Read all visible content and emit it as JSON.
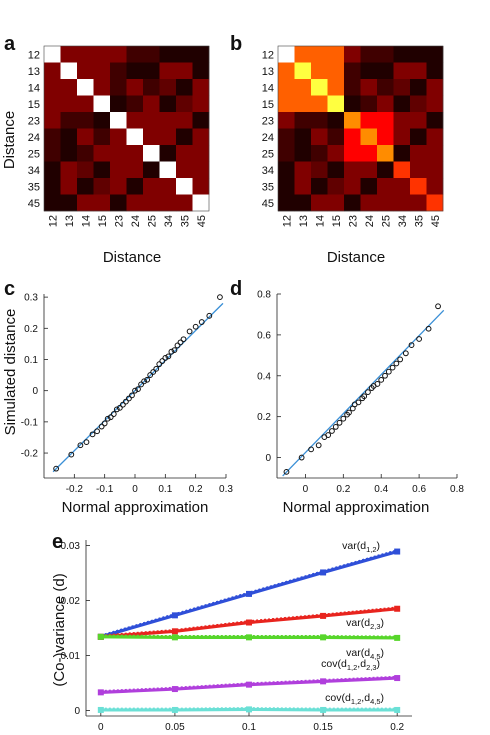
{
  "chart_data": [
    {
      "id": "a",
      "type": "heatmap",
      "panel_label": "a",
      "ylabel": "Distance",
      "xlabel": "Distance",
      "row_labels": [
        "12",
        "13",
        "14",
        "15",
        "23",
        "24",
        "25",
        "34",
        "35",
        "45"
      ],
      "col_labels": [
        "12",
        "13",
        "14",
        "15",
        "23",
        "24",
        "25",
        "34",
        "35",
        "45"
      ],
      "values": [
        [
          1.0,
          0.2,
          0.2,
          0.2,
          0.2,
          0.1,
          0.1,
          0.05,
          0.05,
          0.05
        ],
        [
          0.2,
          1.0,
          0.2,
          0.2,
          0.1,
          0.05,
          0.05,
          0.2,
          0.2,
          0.05
        ],
        [
          0.2,
          0.2,
          1.0,
          0.2,
          0.1,
          0.2,
          0.1,
          0.15,
          0.05,
          0.2
        ],
        [
          0.2,
          0.2,
          0.2,
          1.0,
          0.05,
          0.1,
          0.2,
          0.05,
          0.15,
          0.2
        ],
        [
          0.2,
          0.1,
          0.1,
          0.05,
          1.0,
          0.2,
          0.2,
          0.2,
          0.2,
          0.05
        ],
        [
          0.1,
          0.05,
          0.2,
          0.1,
          0.2,
          1.0,
          0.2,
          0.2,
          0.05,
          0.2
        ],
        [
          0.1,
          0.05,
          0.1,
          0.2,
          0.2,
          0.2,
          1.0,
          0.05,
          0.2,
          0.2
        ],
        [
          0.05,
          0.2,
          0.15,
          0.05,
          0.2,
          0.2,
          0.05,
          1.0,
          0.2,
          0.2
        ],
        [
          0.05,
          0.2,
          0.05,
          0.15,
          0.2,
          0.05,
          0.2,
          0.2,
          1.0,
          0.2
        ],
        [
          0.05,
          0.05,
          0.2,
          0.2,
          0.05,
          0.2,
          0.2,
          0.2,
          0.2,
          1.0
        ]
      ]
    },
    {
      "id": "b",
      "type": "heatmap",
      "panel_label": "b",
      "xlabel": "Distance",
      "row_labels": [
        "12",
        "13",
        "14",
        "15",
        "23",
        "24",
        "25",
        "34",
        "35",
        "45"
      ],
      "col_labels": [
        "12",
        "13",
        "14",
        "15",
        "23",
        "24",
        "25",
        "34",
        "35",
        "45"
      ],
      "values": [
        [
          1.0,
          0.55,
          0.55,
          0.55,
          0.2,
          0.1,
          0.1,
          0.05,
          0.05,
          0.05
        ],
        [
          0.55,
          0.85,
          0.55,
          0.55,
          0.1,
          0.05,
          0.05,
          0.2,
          0.2,
          0.05
        ],
        [
          0.55,
          0.55,
          0.85,
          0.55,
          0.1,
          0.2,
          0.1,
          0.15,
          0.05,
          0.2
        ],
        [
          0.55,
          0.55,
          0.55,
          0.85,
          0.05,
          0.1,
          0.2,
          0.05,
          0.15,
          0.2
        ],
        [
          0.2,
          0.1,
          0.1,
          0.05,
          0.62,
          0.4,
          0.4,
          0.2,
          0.2,
          0.05
        ],
        [
          0.1,
          0.05,
          0.2,
          0.1,
          0.4,
          0.62,
          0.4,
          0.2,
          0.05,
          0.2
        ],
        [
          0.1,
          0.05,
          0.1,
          0.2,
          0.4,
          0.4,
          0.62,
          0.05,
          0.2,
          0.2
        ],
        [
          0.05,
          0.2,
          0.15,
          0.05,
          0.2,
          0.2,
          0.05,
          0.48,
          0.2,
          0.2
        ],
        [
          0.05,
          0.2,
          0.05,
          0.15,
          0.2,
          0.05,
          0.2,
          0.2,
          0.48,
          0.2
        ],
        [
          0.05,
          0.05,
          0.2,
          0.2,
          0.05,
          0.2,
          0.2,
          0.2,
          0.2,
          0.48
        ]
      ]
    },
    {
      "id": "c",
      "type": "scatter",
      "panel_label": "c",
      "xlabel": "Normal approximation",
      "ylabel": "Simulated distance",
      "xlim": [
        -0.3,
        0.3
      ],
      "ylim": [
        -0.28,
        0.31
      ],
      "xticks": [
        "-0.2",
        "-0.1",
        "0",
        "0.1",
        "0.2",
        "0.3"
      ],
      "xtick_values": [
        -0.2,
        -0.1,
        0,
        0.1,
        0.2,
        0.3
      ],
      "yticks": [
        "-0.2",
        "-0.1",
        "0",
        "0.1",
        "0.2",
        "0.3"
      ],
      "ytick_values": [
        -0.2,
        -0.1,
        0,
        0.1,
        0.2,
        0.3
      ],
      "reference_line": {
        "x": [
          -0.27,
          0.29
        ],
        "y": [
          -0.26,
          0.28
        ],
        "color": "#3a8fd6"
      },
      "x": [
        -0.26,
        -0.21,
        -0.18,
        -0.16,
        -0.14,
        -0.125,
        -0.11,
        -0.1,
        -0.09,
        -0.08,
        -0.07,
        -0.06,
        -0.05,
        -0.04,
        -0.03,
        -0.02,
        -0.01,
        0.0,
        0.01,
        0.02,
        0.03,
        0.04,
        0.05,
        0.06,
        0.07,
        0.08,
        0.09,
        0.1,
        0.11,
        0.12,
        0.13,
        0.14,
        0.15,
        0.16,
        0.18,
        0.2,
        0.22,
        0.245,
        0.28
      ],
      "y": [
        -0.25,
        -0.205,
        -0.175,
        -0.165,
        -0.14,
        -0.13,
        -0.115,
        -0.105,
        -0.09,
        -0.085,
        -0.075,
        -0.06,
        -0.055,
        -0.045,
        -0.035,
        -0.025,
        -0.015,
        0.0,
        0.005,
        0.02,
        0.03,
        0.035,
        0.05,
        0.06,
        0.07,
        0.085,
        0.095,
        0.105,
        0.11,
        0.125,
        0.13,
        0.145,
        0.155,
        0.165,
        0.19,
        0.205,
        0.22,
        0.24,
        0.3
      ]
    },
    {
      "id": "d",
      "type": "scatter",
      "panel_label": "d",
      "xlabel": "Normal approximation",
      "xlim": [
        -0.15,
        0.8
      ],
      "ylim": [
        -0.1,
        0.8
      ],
      "xticks": [
        "0",
        "0.2",
        "0.4",
        "0.6",
        "0.8"
      ],
      "xtick_values": [
        0,
        0.2,
        0.4,
        0.6,
        0.8
      ],
      "yticks": [
        "0",
        "0.2",
        "0.4",
        "0.6",
        "0.8"
      ],
      "ytick_values": [
        0,
        0.2,
        0.4,
        0.6,
        0.8
      ],
      "reference_line": {
        "x": [
          -0.12,
          0.73
        ],
        "y": [
          -0.09,
          0.72
        ],
        "color": "#3a8fd6"
      },
      "x": [
        -0.1,
        -0.02,
        0.03,
        0.07,
        0.1,
        0.12,
        0.14,
        0.16,
        0.18,
        0.2,
        0.22,
        0.23,
        0.25,
        0.26,
        0.28,
        0.3,
        0.31,
        0.33,
        0.35,
        0.36,
        0.38,
        0.4,
        0.42,
        0.44,
        0.46,
        0.48,
        0.5,
        0.53,
        0.56,
        0.6,
        0.65,
        0.7
      ],
      "y": [
        -0.07,
        0.0,
        0.04,
        0.06,
        0.1,
        0.11,
        0.13,
        0.15,
        0.17,
        0.19,
        0.21,
        0.22,
        0.24,
        0.26,
        0.27,
        0.29,
        0.3,
        0.32,
        0.34,
        0.35,
        0.36,
        0.38,
        0.4,
        0.42,
        0.44,
        0.46,
        0.48,
        0.51,
        0.55,
        0.58,
        0.63,
        0.74
      ]
    },
    {
      "id": "e",
      "type": "line",
      "panel_label": "e",
      "ylabel": "(Co-)variance (d)",
      "xlim": [
        -0.01,
        0.21
      ],
      "ylim": [
        -0.001,
        0.031
      ],
      "xticks": [
        "0",
        "0.05",
        "0.1",
        "0.15",
        "0.2"
      ],
      "xtick_values": [
        0,
        0.05,
        0.1,
        0.15,
        0.2
      ],
      "yticks": [
        "0",
        "0.01",
        "0.02",
        "0.03"
      ],
      "ytick_values": [
        0,
        0.01,
        0.02,
        0.03
      ],
      "x": [
        0,
        0.05,
        0.1,
        0.15,
        0.2
      ],
      "series": [
        {
          "label_main": "var(d",
          "label_sub": "1,2",
          "label_end": ")",
          "color": "#2f4fd8",
          "values": [
            0.0134,
            0.0173,
            0.0212,
            0.0251,
            0.0289
          ]
        },
        {
          "label_main": "var(d",
          "label_sub": "2,3",
          "label_end": ")",
          "color": "#e8241e",
          "values": [
            0.0134,
            0.0144,
            0.016,
            0.0172,
            0.0185
          ]
        },
        {
          "label_main": "var(d",
          "label_sub": "4,5",
          "label_end": ")",
          "color": "#57d62b",
          "values": [
            0.0134,
            0.0133,
            0.0133,
            0.0133,
            0.0132
          ]
        },
        {
          "label_main": "cov(d",
          "label_sub": "1,2",
          "label_mid": ",d",
          "label_sub2": "2,3",
          "label_end": ")",
          "color": "#b03fdc",
          "values": [
            0.0033,
            0.0039,
            0.0047,
            0.0053,
            0.0059
          ]
        },
        {
          "label_main": "cov(d",
          "label_sub": "1,2",
          "label_mid": ",d",
          "label_sub2": "4,5",
          "label_end": ")",
          "color": "#6be0d6",
          "values": [
            0.0001,
            0.0001,
            0.0002,
            0.0001,
            0.0001
          ]
        }
      ]
    }
  ]
}
